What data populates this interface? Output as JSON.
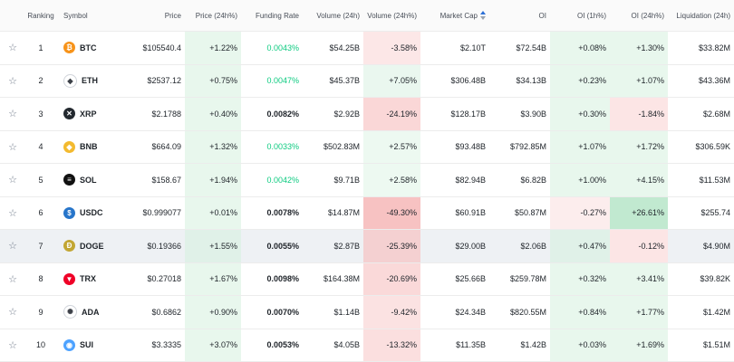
{
  "columns": {
    "ranking": "Ranking",
    "symbol": "Symbol",
    "price": "Price",
    "price_change": "Price (24h%)",
    "funding_rate": "Funding Rate",
    "volume": "Volume (24h)",
    "volume_change": "Volume (24h%)",
    "market_cap": "Market Cap",
    "oi": "OI",
    "oi_1h": "OI (1h%)",
    "oi_24h": "OI (24h%)",
    "liquidation": "Liquidation (24h)"
  },
  "icons": {
    "star": "star-outline-icon",
    "sort": "sort-arrows-icon"
  },
  "rows": [
    {
      "rank": "1",
      "symbol": "BTC",
      "icon": "btc-icon",
      "icon_color": "#f7931a",
      "icon_glyph": "₿",
      "price": "$105540.4",
      "price_change": "+1.22%",
      "funding_rate": "0.0043%",
      "funding_style": "green",
      "volume": "$54.25B",
      "volume_change": "-3.58%",
      "market_cap": "$2.10T",
      "oi": "$72.54B",
      "oi_1h": "+0.08%",
      "oi_24h": "+1.30%",
      "liquidation": "$33.82M"
    },
    {
      "rank": "2",
      "symbol": "ETH",
      "icon": "eth-icon",
      "icon_color": "#ffffff",
      "icon_glyph": "◆",
      "price": "$2537.12",
      "price_change": "+0.75%",
      "funding_rate": "0.0047%",
      "funding_style": "green",
      "volume": "$45.37B",
      "volume_change": "+7.05%",
      "market_cap": "$306.48B",
      "oi": "$34.13B",
      "oi_1h": "+0.23%",
      "oi_24h": "+1.07%",
      "liquidation": "$43.36M"
    },
    {
      "rank": "3",
      "symbol": "XRP",
      "icon": "xrp-icon",
      "icon_color": "#23292f",
      "icon_glyph": "✕",
      "price": "$2.1788",
      "price_change": "+0.40%",
      "funding_rate": "0.0082%",
      "funding_style": "dark",
      "volume": "$2.92B",
      "volume_change": "-24.19%",
      "market_cap": "$128.17B",
      "oi": "$3.90B",
      "oi_1h": "+0.30%",
      "oi_24h": "-1.84%",
      "liquidation": "$2.68M"
    },
    {
      "rank": "4",
      "symbol": "BNB",
      "icon": "bnb-icon",
      "icon_color": "#f3ba2f",
      "icon_glyph": "◆",
      "price": "$664.09",
      "price_change": "+1.32%",
      "funding_rate": "0.0033%",
      "funding_style": "green",
      "volume": "$502.83M",
      "volume_change": "+2.57%",
      "market_cap": "$93.48B",
      "oi": "$792.85M",
      "oi_1h": "+1.07%",
      "oi_24h": "+1.72%",
      "liquidation": "$306.59K"
    },
    {
      "rank": "5",
      "symbol": "SOL",
      "icon": "sol-icon",
      "icon_color": "#111111",
      "icon_glyph": "≡",
      "price": "$158.67",
      "price_change": "+1.94%",
      "funding_rate": "0.0042%",
      "funding_style": "green",
      "volume": "$9.71B",
      "volume_change": "+2.58%",
      "market_cap": "$82.94B",
      "oi": "$6.82B",
      "oi_1h": "+1.00%",
      "oi_24h": "+4.15%",
      "liquidation": "$11.53M"
    },
    {
      "rank": "6",
      "symbol": "USDC",
      "icon": "usdc-icon",
      "icon_color": "#2775ca",
      "icon_glyph": "$",
      "price": "$0.999077",
      "price_change": "+0.01%",
      "funding_rate": "0.0078%",
      "funding_style": "dark",
      "volume": "$14.87M",
      "volume_change": "-49.30%",
      "market_cap": "$60.91B",
      "oi": "$50.87M",
      "oi_1h": "-0.27%",
      "oi_24h": "+26.61%",
      "liquidation": "$255.74"
    },
    {
      "rank": "7",
      "symbol": "DOGE",
      "icon": "doge-icon",
      "icon_color": "#c2a633",
      "icon_glyph": "Ð",
      "price": "$0.19366",
      "price_change": "+1.55%",
      "funding_rate": "0.0055%",
      "funding_style": "dark",
      "volume": "$2.87B",
      "volume_change": "-25.39%",
      "market_cap": "$29.00B",
      "oi": "$2.06B",
      "oi_1h": "+0.47%",
      "oi_24h": "-0.12%",
      "liquidation": "$4.90M"
    },
    {
      "rank": "8",
      "symbol": "TRX",
      "icon": "trx-icon",
      "icon_color": "#ef0027",
      "icon_glyph": "▼",
      "price": "$0.27018",
      "price_change": "+1.67%",
      "funding_rate": "0.0098%",
      "funding_style": "dark",
      "volume": "$164.38M",
      "volume_change": "-20.69%",
      "market_cap": "$25.66B",
      "oi": "$259.78M",
      "oi_1h": "+0.32%",
      "oi_24h": "+3.41%",
      "liquidation": "$39.82K"
    },
    {
      "rank": "9",
      "symbol": "ADA",
      "icon": "ada-icon",
      "icon_color": "#ffffff",
      "icon_glyph": "✺",
      "price": "$0.6862",
      "price_change": "+0.90%",
      "funding_rate": "0.0070%",
      "funding_style": "dark",
      "volume": "$1.14B",
      "volume_change": "-9.42%",
      "market_cap": "$24.34B",
      "oi": "$820.55M",
      "oi_1h": "+0.84%",
      "oi_24h": "+1.77%",
      "liquidation": "$1.42M"
    },
    {
      "rank": "10",
      "symbol": "SUI",
      "icon": "sui-icon",
      "icon_color": "#4da2ff",
      "icon_glyph": "💧",
      "price": "$3.3335",
      "price_change": "+3.07%",
      "funding_rate": "0.0053%",
      "funding_style": "dark",
      "volume": "$4.05B",
      "volume_change": "-13.32%",
      "market_cap": "$11.35B",
      "oi": "$1.42B",
      "oi_1h": "+0.03%",
      "oi_24h": "+1.69%",
      "liquidation": "$1.51M"
    }
  ]
}
